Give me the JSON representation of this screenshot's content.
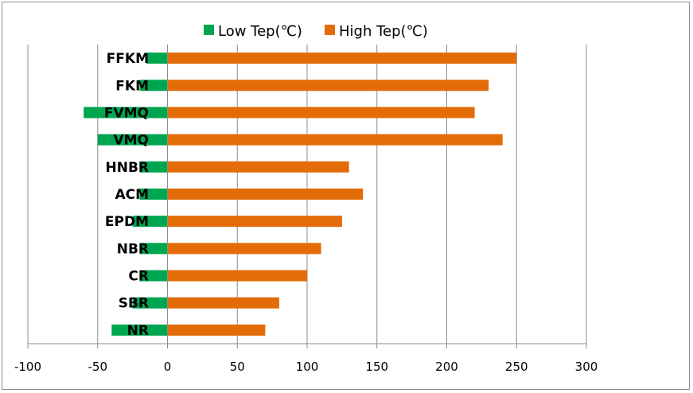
{
  "chart_data": {
    "type": "bar",
    "orientation": "horizontal",
    "categories": [
      "FFKM",
      "FKM",
      "FVMQ",
      "VMQ",
      "HNBR",
      "ACM",
      "EPDM",
      "NBR",
      "CR",
      "SBR",
      "NR"
    ],
    "series": [
      {
        "name": "Low Tep(℃)",
        "color": "#00a550",
        "values": [
          -15,
          -20,
          -60,
          -50,
          -20,
          -20,
          -25,
          -20,
          -20,
          -25,
          -40
        ]
      },
      {
        "name": "High Tep(℃)",
        "color": "#e36c09",
        "values": [
          250,
          230,
          220,
          240,
          130,
          140,
          125,
          110,
          100,
          80,
          70
        ]
      }
    ],
    "xlim": [
      -100,
      300
    ],
    "x_ticks": [
      -100,
      -50,
      0,
      50,
      100,
      150,
      200,
      250,
      300
    ],
    "x_tick_labels": [
      "-100",
      "-50",
      "0",
      "50",
      "100",
      "150",
      "200",
      "250",
      "300"
    ],
    "grid": "vertical",
    "legend_position": "top"
  }
}
